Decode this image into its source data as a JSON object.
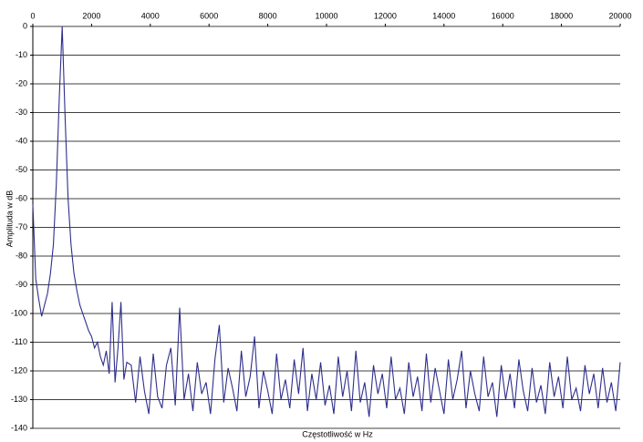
{
  "chart_data": {
    "type": "line",
    "x_label": "Częstotliwość w Hz",
    "y_label": "Amplituda w dB",
    "xlim": [
      0,
      20000
    ],
    "xticks": [
      0,
      2000,
      4000,
      6000,
      8000,
      10000,
      12000,
      14000,
      16000,
      18000,
      20000
    ],
    "ylim": [
      -140,
      0
    ],
    "yticks": [
      0,
      -10,
      -20,
      -30,
      -40,
      -50,
      -60,
      -70,
      -80,
      -90,
      -100,
      -110,
      -120,
      -130,
      -140
    ],
    "grid": true,
    "x_axis_position": "top",
    "series": [
      {
        "color": "#2e2e8c",
        "x": [
          0,
          100,
          200,
          300,
          400,
          500,
          600,
          700,
          800,
          900,
          1000,
          1100,
          1200,
          1300,
          1400,
          1500,
          1600,
          1700,
          1800,
          1900,
          2000,
          2100,
          2200,
          2300,
          2400,
          2500,
          2600,
          2700,
          2800,
          2900,
          3000,
          3100,
          3200,
          3350,
          3500,
          3650,
          3800,
          3950,
          4100,
          4250,
          4400,
          4550,
          4700,
          4850,
          5000,
          5150,
          5300,
          5450,
          5600,
          5750,
          5900,
          6050,
          6200,
          6350,
          6500,
          6650,
          6800,
          6950,
          7100,
          7250,
          7400,
          7550,
          7700,
          7850,
          8000,
          8150,
          8300,
          8450,
          8600,
          8750,
          8900,
          9050,
          9200,
          9350,
          9500,
          9650,
          9800,
          9950,
          10100,
          10250,
          10400,
          10550,
          10700,
          10850,
          11000,
          11150,
          11300,
          11450,
          11600,
          11750,
          11900,
          12050,
          12200,
          12350,
          12500,
          12650,
          12800,
          12950,
          13100,
          13250,
          13400,
          13550,
          13700,
          13850,
          14000,
          14150,
          14300,
          14450,
          14600,
          14750,
          14900,
          15050,
          15200,
          15350,
          15500,
          15650,
          15800,
          15950,
          16100,
          16250,
          16400,
          16550,
          16700,
          16850,
          17000,
          17150,
          17300,
          17450,
          17600,
          17750,
          17900,
          18050,
          18200,
          18350,
          18500,
          18650,
          18800,
          18950,
          19100,
          19250,
          19400,
          19550,
          19700,
          19850,
          20000
        ],
        "values": [
          -62,
          -88,
          -95,
          -101,
          -97,
          -93,
          -86,
          -76,
          -55,
          -25,
          0,
          -32,
          -60,
          -76,
          -86,
          -92,
          -97,
          -100,
          -103,
          -106,
          -108,
          -112,
          -110,
          -115,
          -118,
          -113,
          -121,
          -96,
          -124,
          -112,
          -96,
          -123,
          -117,
          -118,
          -131,
          -115,
          -127,
          -135,
          -114,
          -129,
          -133,
          -118,
          -112,
          -132,
          -98,
          -130,
          -121,
          -134,
          -117,
          -128,
          -124,
          -135,
          -116,
          -104,
          -131,
          -119,
          -126,
          -134,
          -113,
          -129,
          -122,
          -108,
          -133,
          -120,
          -127,
          -135,
          -114,
          -130,
          -123,
          -133,
          -116,
          -128,
          -112,
          -134,
          -121,
          -130,
          -117,
          -132,
          -125,
          -135,
          -115,
          -129,
          -120,
          -134,
          -113,
          -131,
          -124,
          -136,
          -118,
          -128,
          -121,
          -133,
          -115,
          -130,
          -126,
          -135,
          -117,
          -129,
          -122,
          -134,
          -114,
          -131,
          -119,
          -127,
          -135,
          -116,
          -130,
          -123,
          -113,
          -133,
          -120,
          -128,
          -134,
          -115,
          -129,
          -124,
          -136,
          -118,
          -130,
          -121,
          -133,
          -116,
          -127,
          -134,
          -119,
          -131,
          -125,
          -135,
          -117,
          -129,
          -122,
          -133,
          -115,
          -130,
          -126,
          -134,
          -118,
          -128,
          -121,
          -133,
          -119,
          -131,
          -124,
          -134,
          -117
        ]
      }
    ]
  }
}
